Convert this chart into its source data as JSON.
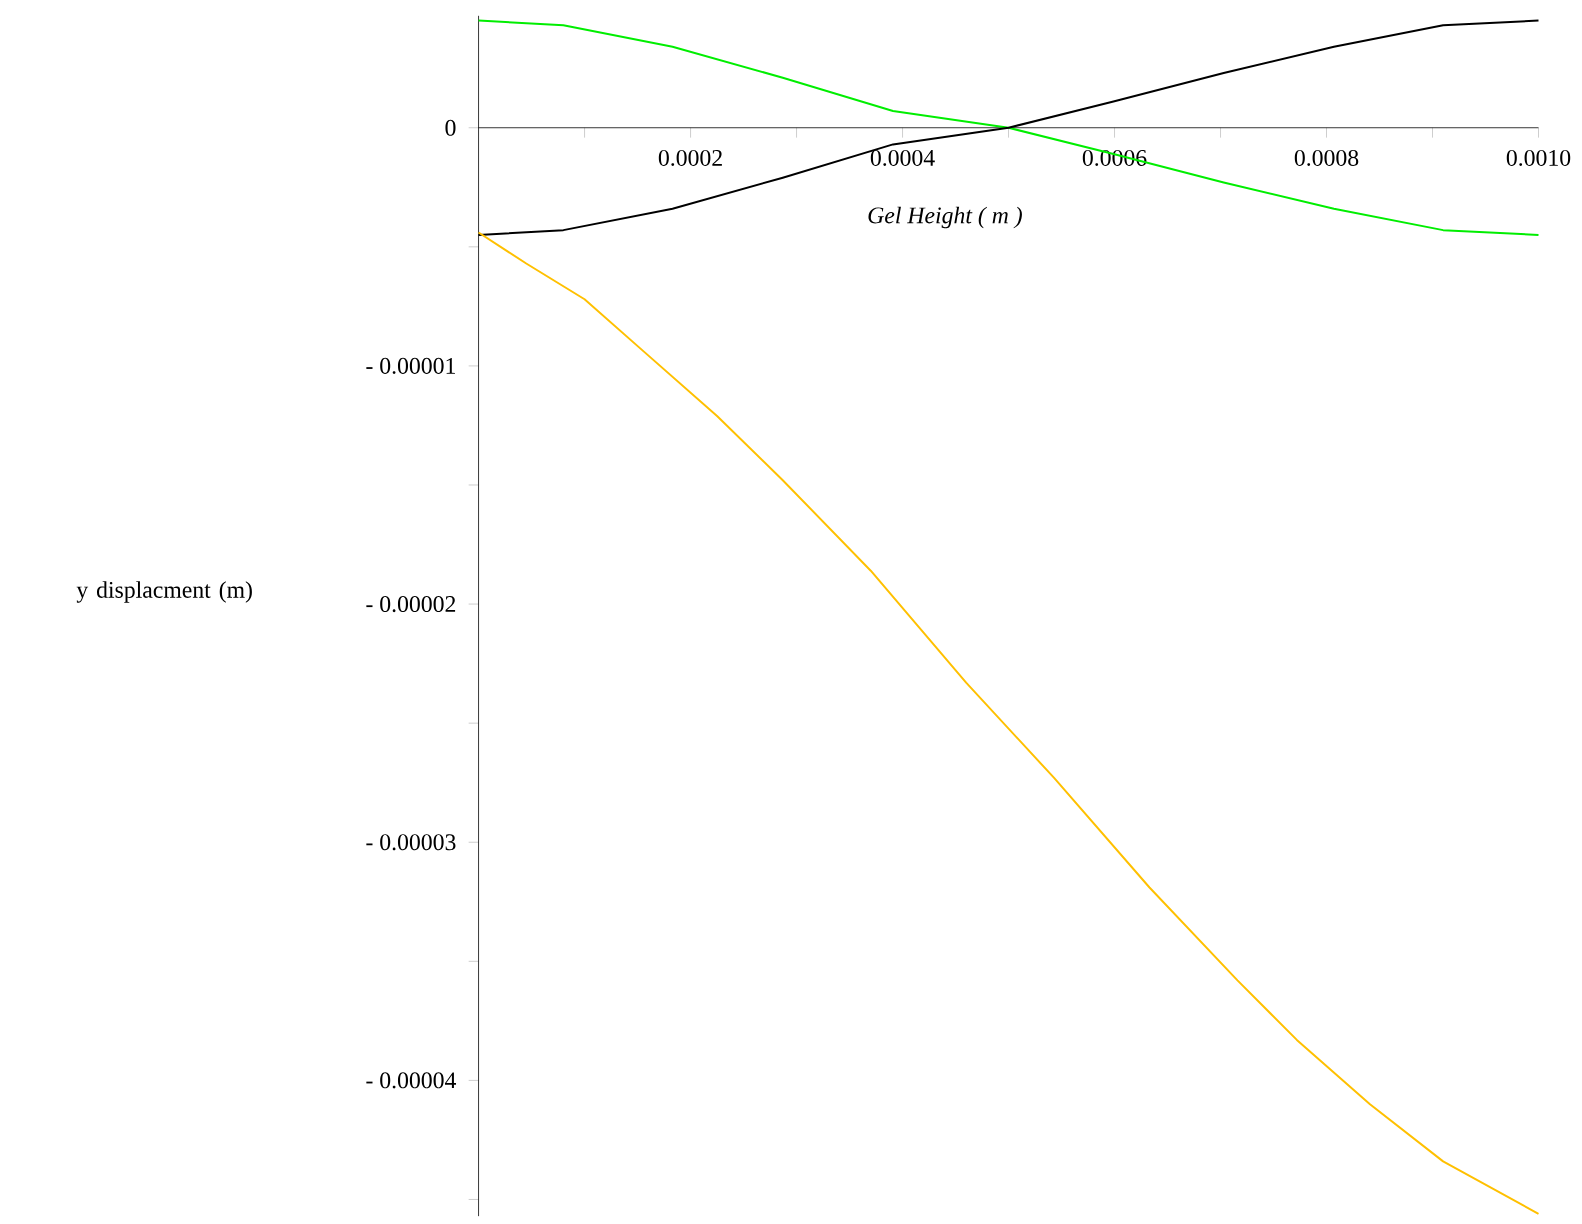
{
  "chart_data": {
    "type": "line",
    "xlabel": "Gel Height ( m )",
    "ylabel": "y displacment (m)",
    "xlim": [
      0,
      0.001
    ],
    "ylim": [
      -4.57e-05,
      4.7e-06
    ],
    "xticks": [
      {
        "value": 0.0001,
        "label": null
      },
      {
        "value": 0.0002,
        "label": "0.0002"
      },
      {
        "value": 0.0003,
        "label": null
      },
      {
        "value": 0.0004,
        "label": "0.0004"
      },
      {
        "value": 0.0005,
        "label": null
      },
      {
        "value": 0.0006,
        "label": "0.0006"
      },
      {
        "value": 0.0007,
        "label": null
      },
      {
        "value": 0.0008,
        "label": "0.0008"
      },
      {
        "value": 0.0009,
        "label": null
      },
      {
        "value": 0.001,
        "label": "0.0010"
      }
    ],
    "yticks": [
      {
        "value": 0,
        "label": "0"
      },
      {
        "value": -5e-06,
        "label": null
      },
      {
        "value": -1e-05,
        "label": "- 0.00001"
      },
      {
        "value": -1.5e-05,
        "label": null
      },
      {
        "value": -2e-05,
        "label": "- 0.00002"
      },
      {
        "value": -2.5e-05,
        "label": null
      },
      {
        "value": -3e-05,
        "label": "- 0.00003"
      },
      {
        "value": -3.5e-05,
        "label": null
      },
      {
        "value": -4e-05,
        "label": "- 0.00004"
      },
      {
        "value": -4.5e-05,
        "label": null
      }
    ],
    "series": [
      {
        "color": "#00ee00",
        "x": [
          0,
          8e-05,
          0.000183,
          0.000287,
          0.000391,
          0.0005,
          0.000599,
          0.000703,
          0.000807,
          0.00091,
          0.001
        ],
        "values": [
          4.5e-06,
          4.3e-06,
          3.4e-06,
          2.1e-06,
          7e-07,
          0,
          -1.1e-06,
          -2.3e-06,
          -3.4e-06,
          -4.3e-06,
          -4.5e-06
        ]
      },
      {
        "color": "#000000",
        "x": [
          0,
          8e-05,
          0.000183,
          0.000287,
          0.000391,
          0.0005,
          0.000599,
          0.000703,
          0.000807,
          0.00091,
          0.001
        ],
        "values": [
          -4.5e-06,
          -4.3e-06,
          -3.4e-06,
          -2.1e-06,
          -7e-07,
          0,
          1.1e-06,
          2.3e-06,
          3.4e-06,
          4.3e-06,
          4.5e-06
        ]
      },
      {
        "color": "#ffc000",
        "x": [
          0,
          4.5e-05,
          0.0001,
          0.000156,
          0.000225,
          0.000287,
          0.00037,
          0.00046,
          0.000543,
          0.000633,
          0.000716,
          0.000772,
          0.000841,
          0.00091,
          0.001
        ],
        "values": [
          -4.4e-06,
          -5.7e-06,
          -7.2e-06,
          -9.4e-06,
          -1.21e-05,
          -1.48e-05,
          -1.86e-05,
          -2.33e-05,
          -2.73e-05,
          -3.19e-05,
          -3.58e-05,
          -3.83e-05,
          -4.1e-05,
          -4.34e-05,
          -4.56e-05
        ]
      }
    ]
  }
}
